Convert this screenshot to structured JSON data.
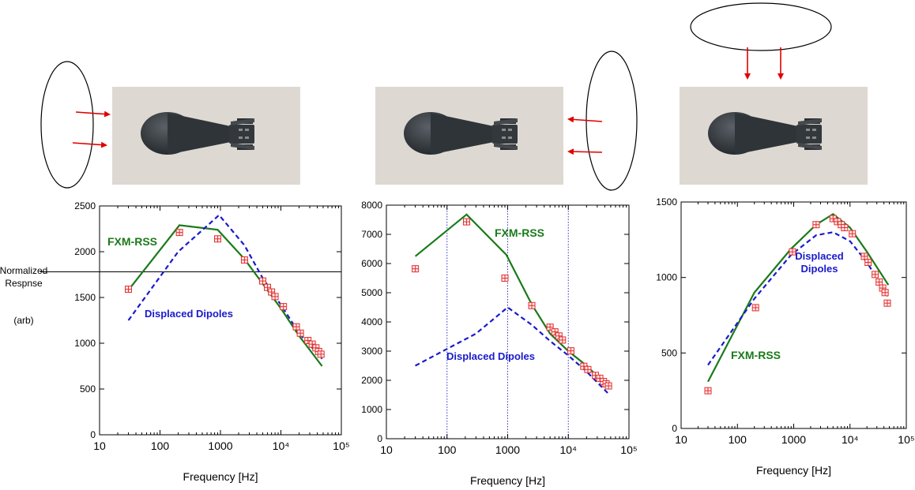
{
  "colors": {
    "fxm": "#1a7a1a",
    "dipole": "#1a1acc",
    "marker": "#e03030",
    "arrow": "#e00000",
    "axis": "#000000",
    "vgrid": "#3333cc"
  },
  "ylabel_side": {
    "line1": "Normalized",
    "line2": "Respnse",
    "line3": "(arb)"
  },
  "chart_data": [
    {
      "type": "line",
      "title": "",
      "xlabel": "Frequency [Hz]",
      "ylabel": "Normalized Respnse (arb)",
      "xscale": "log",
      "xlim": [
        10,
        100000
      ],
      "ylim": [
        0,
        2500
      ],
      "xtick_labels": [
        "10",
        "100",
        "1000",
        "10⁴",
        "10⁵"
      ],
      "ytick_labels": [
        "0",
        "500",
        "1000",
        "1500",
        "2000",
        "2500"
      ],
      "grid": false,
      "hline": 1780,
      "series": [
        {
          "name": "FXM-RSS",
          "style": "solid",
          "x": [
            30,
            210,
            900,
            2500,
            5000,
            10000,
            20000,
            48000
          ],
          "y": [
            1580,
            2290,
            2240,
            1920,
            1650,
            1380,
            1080,
            750
          ]
        },
        {
          "name": "Displaced Dipoles",
          "style": "dashed",
          "x": [
            30,
            200,
            950,
            2500,
            5000,
            10000,
            20000,
            48000
          ],
          "y": [
            1250,
            2000,
            2400,
            2070,
            1710,
            1420,
            1110,
            830
          ]
        },
        {
          "name": "",
          "style": "markers",
          "x": [
            30,
            210,
            900,
            2500,
            5000,
            6000,
            7000,
            8000,
            11000,
            18000,
            21000,
            28000,
            33000,
            38000,
            42000,
            46000
          ],
          "y": [
            1590,
            2210,
            2140,
            1910,
            1680,
            1610,
            1560,
            1510,
            1400,
            1180,
            1110,
            1030,
            990,
            950,
            910,
            880
          ]
        }
      ],
      "annotations": [
        {
          "text": "FXM-RSS",
          "series": "fxm"
        },
        {
          "text": "Displaced Dipoles",
          "series": "dipole"
        }
      ]
    },
    {
      "type": "line",
      "title": "",
      "xlabel": "Frequency [Hz]",
      "ylabel": "",
      "xscale": "log",
      "xlim": [
        10,
        100000
      ],
      "ylim": [
        0,
        8000
      ],
      "xtick_labels": [
        "10",
        "100",
        "1000",
        "10⁴",
        "10⁵"
      ],
      "ytick_labels": [
        "0",
        "1000",
        "2000",
        "3000",
        "4000",
        "5000",
        "6000",
        "7000",
        "8000"
      ],
      "grid": false,
      "vlines": [
        100,
        1000,
        10000
      ],
      "series": [
        {
          "name": "FXM-RSS",
          "style": "solid",
          "x": [
            30,
            210,
            950,
            2500,
            5000,
            10000,
            20000,
            48000
          ],
          "y": [
            6250,
            7680,
            6300,
            4600,
            3600,
            3000,
            2500,
            1720
          ]
        },
        {
          "name": "Displaced Dipoles",
          "style": "dashed",
          "x": [
            30,
            300,
            1000,
            2500,
            5000,
            10000,
            20000,
            48000
          ],
          "y": [
            2500,
            3600,
            4500,
            3900,
            3350,
            2850,
            2300,
            1500
          ]
        },
        {
          "name": "",
          "style": "markers",
          "x": [
            30,
            210,
            900,
            2500,
            5000,
            6000,
            7000,
            8000,
            11000,
            18000,
            21000,
            28000,
            33000,
            38000,
            42000,
            46000
          ],
          "y": [
            5820,
            7430,
            5500,
            4560,
            3820,
            3660,
            3520,
            3380,
            3010,
            2480,
            2370,
            2170,
            2070,
            1960,
            1880,
            1810
          ]
        }
      ],
      "annotations": [
        {
          "text": "FXM-RSS",
          "series": "fxm"
        },
        {
          "text": "Displaced Dipoles",
          "series": "dipole"
        }
      ]
    },
    {
      "type": "line",
      "title": "",
      "xlabel": "Frequency [Hz]",
      "ylabel": "",
      "xscale": "log",
      "xlim": [
        10,
        100000
      ],
      "ylim": [
        0,
        1500
      ],
      "xtick_labels": [
        "10",
        "100",
        "1000",
        "10⁴",
        "10⁵"
      ],
      "ytick_labels": [
        "0",
        "500",
        "1000",
        "1500"
      ],
      "grid": false,
      "series": [
        {
          "name": "FXM-RSS",
          "style": "solid",
          "x": [
            30,
            200,
            900,
            2500,
            5000,
            10000,
            20000,
            48000
          ],
          "y": [
            310,
            900,
            1190,
            1350,
            1420,
            1330,
            1170,
            950
          ]
        },
        {
          "name": "Displaced Dipoles",
          "style": "dashed",
          "x": [
            30,
            200,
            900,
            2500,
            5000,
            10000,
            20000,
            48000
          ],
          "y": [
            420,
            860,
            1150,
            1280,
            1300,
            1240,
            1100,
            870
          ]
        },
        {
          "name": "",
          "style": "markers",
          "x": [
            30,
            210,
            950,
            2500,
            5000,
            6000,
            7000,
            8000,
            11000,
            18000,
            21000,
            28000,
            33000,
            38000,
            42000,
            46000
          ],
          "y": [
            250,
            800,
            1170,
            1350,
            1390,
            1370,
            1350,
            1330,
            1290,
            1140,
            1100,
            1020,
            970,
            930,
            900,
            830
          ]
        }
      ],
      "annotations": [
        {
          "text": "FXM-RSS",
          "series": "fxm"
        },
        {
          "text": "Displaced",
          "series": "dipole"
        },
        {
          "text": "Dipoles",
          "series": "dipole"
        }
      ]
    }
  ]
}
